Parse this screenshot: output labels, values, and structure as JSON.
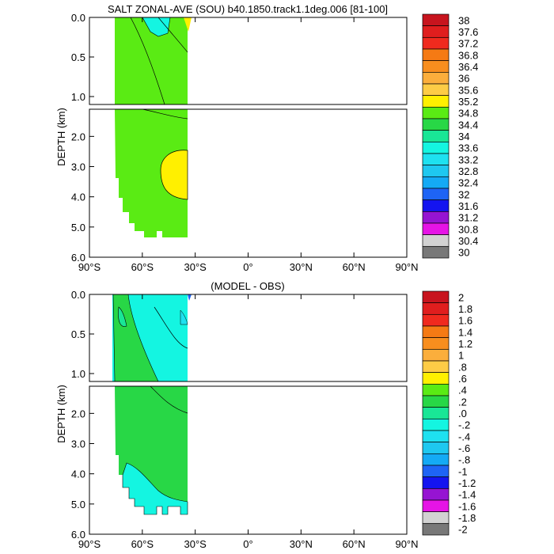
{
  "chart_data": [
    {
      "type": "contour",
      "title": "SALT ZONAL-AVE (SOU) b40.1850.track1.1deg.006 [81-100]",
      "ylabel": "DEPTH (km)",
      "x_ticks": [
        "90°S",
        "60°S",
        "30°S",
        "0°",
        "30°N",
        "60°N",
        "90°N"
      ],
      "xlim": [
        -90,
        90
      ],
      "y_ticks_upper": [
        "0.0",
        "0.5",
        "1.0"
      ],
      "y_ticks_lower": [
        "2.0",
        "3.0",
        "4.0",
        "5.0",
        "6.0"
      ],
      "ylim_upper_km": [
        0,
        1.1
      ],
      "ylim_lower_km": [
        1.1,
        6.0
      ],
      "data_lat_range": [
        -76,
        -34
      ],
      "colorbar_labels": [
        "38",
        "37.6",
        "37.2",
        "36.8",
        "36.4",
        "36",
        "35.6",
        "35.2",
        "34.8",
        "34.4",
        "34",
        "33.6",
        "33.2",
        "32.8",
        "32.4",
        "32",
        "31.6",
        "31.2",
        "30.8",
        "30.4",
        "30"
      ],
      "colorbar_colors": [
        "#c8141e",
        "#e01e1e",
        "#f02a1e",
        "#f57a14",
        "#f88e1e",
        "#fbae3c",
        "#fdcc46",
        "#fff000",
        "#5aeb14",
        "#28d746",
        "#19e696",
        "#14f5e1",
        "#1ee1f0",
        "#1ec8f0",
        "#14aaf5",
        "#1e64f5",
        "#1414f0",
        "#9614d2",
        "#e614e6",
        "#d2d2d2",
        "#787878"
      ],
      "filled_region_colors": {
        "main": "#5aeb14",
        "near_surface": "#14f5e1",
        "deep_core": "#fff000",
        "surface_edge": "#fff000"
      }
    },
    {
      "type": "contour",
      "title": "(MODEL - OBS)",
      "ylabel": "DEPTH (km)",
      "x_ticks": [
        "90°S",
        "60°S",
        "30°S",
        "0°",
        "30°N",
        "60°N",
        "90°N"
      ],
      "xlim": [
        -90,
        90
      ],
      "y_ticks_upper": [
        "0.0",
        "0.5",
        "1.0"
      ],
      "y_ticks_lower": [
        "2.0",
        "3.0",
        "4.0",
        "5.0",
        "6.0"
      ],
      "ylim_upper_km": [
        0,
        1.1
      ],
      "ylim_lower_km": [
        1.1,
        6.0
      ],
      "data_lat_range": [
        -76,
        -34
      ],
      "colorbar_labels": [
        "2",
        "1.8",
        "1.6",
        "1.4",
        "1.2",
        "1",
        ".8",
        ".6",
        ".4",
        ".2",
        ".0",
        "-.2",
        "-.4",
        "-.6",
        "-.8",
        "-1",
        "-1.2",
        "-1.4",
        "-1.6",
        "-1.8",
        "-2"
      ],
      "colorbar_colors": [
        "#c8141e",
        "#e01e1e",
        "#f02a1e",
        "#f57a14",
        "#f88e1e",
        "#fbae3c",
        "#fdcc46",
        "#fff000",
        "#5aeb14",
        "#28d746",
        "#19e696",
        "#14f5e1",
        "#1ee1f0",
        "#1ec8f0",
        "#14aaf5",
        "#1e64f5",
        "#1414f0",
        "#9614d2",
        "#e614e6",
        "#d2d2d2",
        "#787878"
      ],
      "filled_region_colors": {
        "main": "#28d746",
        "negative": "#14f5e1"
      }
    }
  ]
}
